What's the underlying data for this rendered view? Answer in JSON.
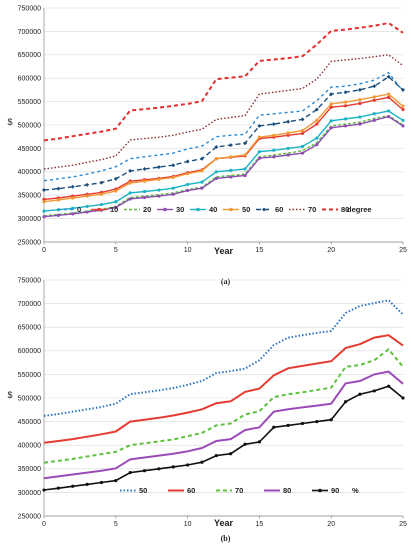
{
  "chart_data": [
    {
      "type": "line",
      "caption": "(a)",
      "xlabel": "Year",
      "ylabel": "$",
      "xlim": [
        0,
        25
      ],
      "ylim": [
        250000,
        750000
      ],
      "yticks": [
        "250000",
        "300000",
        "350000",
        "400000",
        "450000",
        "500000",
        "550000",
        "600000",
        "650000",
        "700000",
        "750000"
      ],
      "xticks": [
        "0",
        "5",
        "10",
        "15",
        "20",
        "25"
      ],
      "legend_position": "bottom",
      "legend_unit": "degree",
      "x": [
        0,
        1,
        2,
        3,
        4,
        5,
        6,
        7,
        8,
        9,
        10,
        11,
        12,
        13,
        14,
        15,
        16,
        17,
        18,
        19,
        20,
        21,
        22,
        23,
        24,
        25
      ],
      "series": [
        {
          "name": "0",
          "color": "#2a8bd4",
          "dash": "3,3",
          "marker": "none",
          "values": [
            381000,
            385000,
            389000,
            395000,
            402000,
            411000,
            428000,
            432000,
            436000,
            440000,
            449000,
            455000,
            475000,
            478000,
            480000,
            521000,
            524000,
            527000,
            530000,
            552000,
            581000,
            583000,
            588000,
            596000,
            612000,
            572000
          ]
        },
        {
          "name": "10",
          "color": "#e33c2f",
          "dash": "",
          "marker": "circle",
          "values": [
            341000,
            344000,
            348000,
            352000,
            356000,
            363000,
            380000,
            383000,
            386000,
            390000,
            398000,
            404000,
            428000,
            431000,
            434000,
            471000,
            474000,
            478000,
            482000,
            502000,
            538000,
            541000,
            546000,
            553000,
            559000,
            533000
          ]
        },
        {
          "name": "20",
          "color": "#5bbd3b",
          "dash": "3,2",
          "marker": "none",
          "values": [
            306000,
            309000,
            312000,
            316000,
            320000,
            326000,
            345000,
            348000,
            351000,
            355000,
            362000,
            367000,
            389000,
            392000,
            395000,
            432000,
            436000,
            440000,
            445000,
            462000,
            498000,
            502000,
            506000,
            514000,
            520000,
            500000
          ]
        },
        {
          "name": "30",
          "color": "#8e4bb0",
          "dash": "",
          "marker": "circle",
          "values": [
            304000,
            307000,
            310000,
            314000,
            318000,
            324000,
            342000,
            345000,
            348000,
            352000,
            360000,
            365000,
            386000,
            389000,
            392000,
            429000,
            432000,
            436000,
            440000,
            458000,
            494000,
            498000,
            502000,
            510000,
            518000,
            498000
          ]
        },
        {
          "name": "40",
          "color": "#1ab3c2",
          "dash": "",
          "marker": "circle",
          "values": [
            316000,
            319000,
            322000,
            326000,
            330000,
            336000,
            355000,
            358000,
            361000,
            365000,
            373000,
            378000,
            400000,
            403000,
            406000,
            443000,
            446000,
            450000,
            454000,
            472000,
            509000,
            513000,
            517000,
            524000,
            530000,
            510000
          ]
        },
        {
          "name": "50",
          "color": "#f29833",
          "dash": "",
          "marker": "circle",
          "values": [
            336000,
            340000,
            344000,
            348000,
            352000,
            359000,
            376000,
            380000,
            384000,
            388000,
            396000,
            402000,
            428000,
            432000,
            436000,
            474000,
            478000,
            483000,
            488000,
            510000,
            545000,
            549000,
            554000,
            560000,
            566000,
            540000
          ]
        },
        {
          "name": "60",
          "color": "#1c4f7c",
          "dash": "5,3",
          "marker": "diamond",
          "values": [
            361000,
            364000,
            368000,
            372000,
            377000,
            385000,
            402000,
            406000,
            410000,
            414000,
            422000,
            428000,
            453000,
            457000,
            461000,
            498000,
            502000,
            507000,
            512000,
            533000,
            566000,
            570000,
            575000,
            583000,
            603000,
            575000
          ]
        },
        {
          "name": "70",
          "color": "#8a2b2b",
          "dash": "1.5,2",
          "marker": "none",
          "values": [
            406000,
            410000,
            414000,
            420000,
            426000,
            434000,
            468000,
            471000,
            474000,
            478000,
            485000,
            491000,
            512000,
            516000,
            520000,
            566000,
            570000,
            574000,
            578000,
            598000,
            636000,
            639000,
            642000,
            646000,
            650000,
            627000
          ]
        },
        {
          "name": "80",
          "color": "#e52f2f",
          "dash": "4,3",
          "marker": "none",
          "width": 2,
          "values": [
            467000,
            471000,
            476000,
            481000,
            486000,
            492000,
            531000,
            534000,
            537000,
            541000,
            545000,
            551000,
            598000,
            601000,
            604000,
            637000,
            640000,
            643000,
            647000,
            672000,
            701000,
            704000,
            708000,
            712000,
            718000,
            697000
          ]
        }
      ]
    },
    {
      "type": "line",
      "caption": "(b)",
      "xlabel": "Year",
      "ylabel": "$",
      "xlim": [
        0,
        25
      ],
      "ylim": [
        250000,
        750000
      ],
      "yticks": [
        "250000",
        "300000",
        "350000",
        "400000",
        "450000",
        "500000",
        "550000",
        "600000",
        "650000",
        "700000",
        "750000"
      ],
      "xticks": [
        "0",
        "5",
        "10",
        "15",
        "20",
        "25"
      ],
      "legend_position": "bottom",
      "legend_unit": "%",
      "x": [
        0,
        1,
        2,
        3,
        4,
        5,
        6,
        7,
        8,
        9,
        10,
        11,
        12,
        13,
        14,
        15,
        16,
        17,
        18,
        19,
        20,
        21,
        22,
        23,
        24,
        25
      ],
      "series": [
        {
          "name": "50",
          "color": "#2a73c8",
          "dash": "1.5,2",
          "marker": "none",
          "width": 2,
          "values": [
            462000,
            466000,
            471000,
            476000,
            481000,
            488000,
            508000,
            512000,
            516000,
            521000,
            528000,
            536000,
            553000,
            557000,
            562000,
            580000,
            612000,
            628000,
            633000,
            638000,
            642000,
            680000,
            695000,
            701000,
            707000,
            677000
          ]
        },
        {
          "name": "60",
          "color": "#e63b30",
          "dash": "",
          "marker": "none",
          "width": 2,
          "values": [
            405000,
            409000,
            413000,
            418000,
            423000,
            429000,
            450000,
            454000,
            458000,
            463000,
            469000,
            476000,
            489000,
            493000,
            513000,
            520000,
            548000,
            563000,
            568000,
            573000,
            578000,
            606000,
            614000,
            628000,
            633000,
            611000
          ]
        },
        {
          "name": "70",
          "color": "#5cc13c",
          "dash": "4,3",
          "marker": "none",
          "width": 2,
          "values": [
            363000,
            367000,
            371000,
            376000,
            381000,
            386000,
            400000,
            404000,
            408000,
            412000,
            419000,
            426000,
            442000,
            446000,
            465000,
            472000,
            502000,
            508000,
            512000,
            517000,
            522000,
            566000,
            570000,
            580000,
            603000,
            566000
          ]
        },
        {
          "name": "80",
          "color": "#9a4bb8",
          "dash": "",
          "marker": "none",
          "width": 2,
          "values": [
            330000,
            334000,
            338000,
            342000,
            346000,
            351000,
            370000,
            374000,
            378000,
            382000,
            387000,
            394000,
            409000,
            413000,
            432000,
            438000,
            471000,
            476000,
            480000,
            484000,
            488000,
            531000,
            536000,
            550000,
            556000,
            530000
          ]
        },
        {
          "name": "90",
          "color": "#111111",
          "dash": "",
          "marker": "circle",
          "width": 1.6,
          "values": [
            305000,
            309000,
            313000,
            317000,
            321000,
            325000,
            342000,
            346000,
            350000,
            354000,
            358000,
            364000,
            378000,
            382000,
            402000,
            407000,
            438000,
            442000,
            446000,
            450000,
            454000,
            492000,
            508000,
            515000,
            525000,
            500000
          ]
        }
      ]
    }
  ]
}
